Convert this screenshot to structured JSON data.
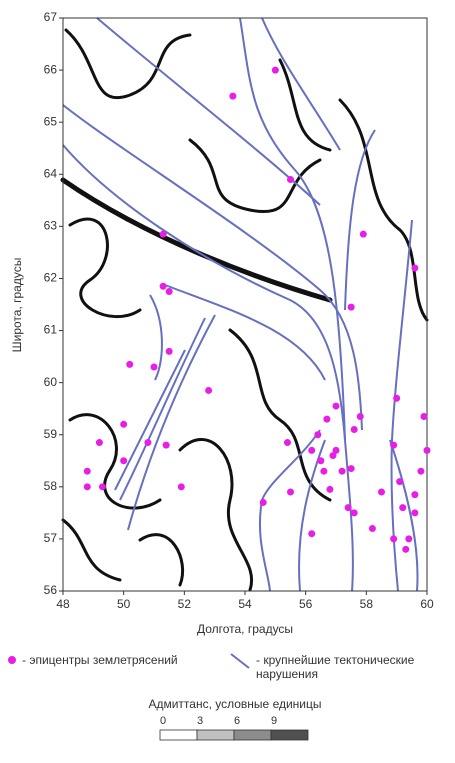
{
  "chart_data": {
    "type": "scatter",
    "x_label": "Долгота, градусы",
    "y_label": "Широта, градусы",
    "xlim": [
      48,
      60
    ],
    "ylim": [
      56,
      67
    ],
    "xticks": [
      48,
      50,
      52,
      54,
      56,
      58,
      60
    ],
    "yticks": [
      56,
      57,
      58,
      59,
      60,
      61,
      62,
      63,
      64,
      65,
      66,
      67
    ],
    "series": [
      {
        "name": "- эпицентры землетрясений",
        "color": "#e61ee6",
        "x": [
          55.0,
          53.6,
          55.5,
          51.3,
          57.9,
          59.6,
          51.3,
          51.5,
          57.5,
          51.5,
          50.2,
          51.0,
          52.8,
          57.0,
          59.0,
          56.7,
          57.8,
          59.9,
          50.0,
          56.4,
          55.4,
          57.6,
          58.9,
          49.2,
          50.8,
          51.4,
          57.0,
          56.2,
          60.0,
          56.5,
          56.6,
          57.2,
          57.5,
          48.8,
          50.0,
          56.9,
          59.8,
          59.1,
          59.6,
          48.8,
          49.3,
          51.9,
          55.5,
          56.8,
          58.5,
          57.4,
          57.6,
          59.2,
          59.6,
          54.6,
          58.2,
          56.2,
          59.4,
          58.9,
          59.3
        ],
        "y": [
          66.0,
          65.5,
          63.9,
          62.85,
          62.85,
          62.2,
          61.85,
          61.75,
          61.45,
          60.6,
          60.35,
          60.3,
          59.85,
          59.55,
          59.7,
          59.3,
          59.35,
          59.35,
          59.2,
          59.0,
          58.85,
          59.1,
          58.8,
          58.85,
          58.85,
          58.8,
          58.7,
          58.7,
          58.7,
          58.5,
          58.3,
          58.3,
          58.35,
          58.3,
          58.5,
          58.6,
          58.3,
          58.1,
          57.85,
          58.0,
          58.0,
          58.0,
          57.9,
          57.95,
          57.9,
          57.6,
          57.5,
          57.6,
          57.5,
          57.7,
          57.2,
          57.1,
          57.0,
          57.0,
          56.8
        ]
      }
    ],
    "faults": {
      "name": "- крупнейшие тектонические нарушения",
      "color": "#6670c0"
    },
    "colorbar": {
      "title": "Адмиттанс, условные единицы",
      "ticks": [
        0,
        3,
        6,
        9
      ],
      "colors": [
        "#ffffff",
        "#c0c0c0",
        "#8c8c8c",
        "#505050"
      ]
    }
  }
}
